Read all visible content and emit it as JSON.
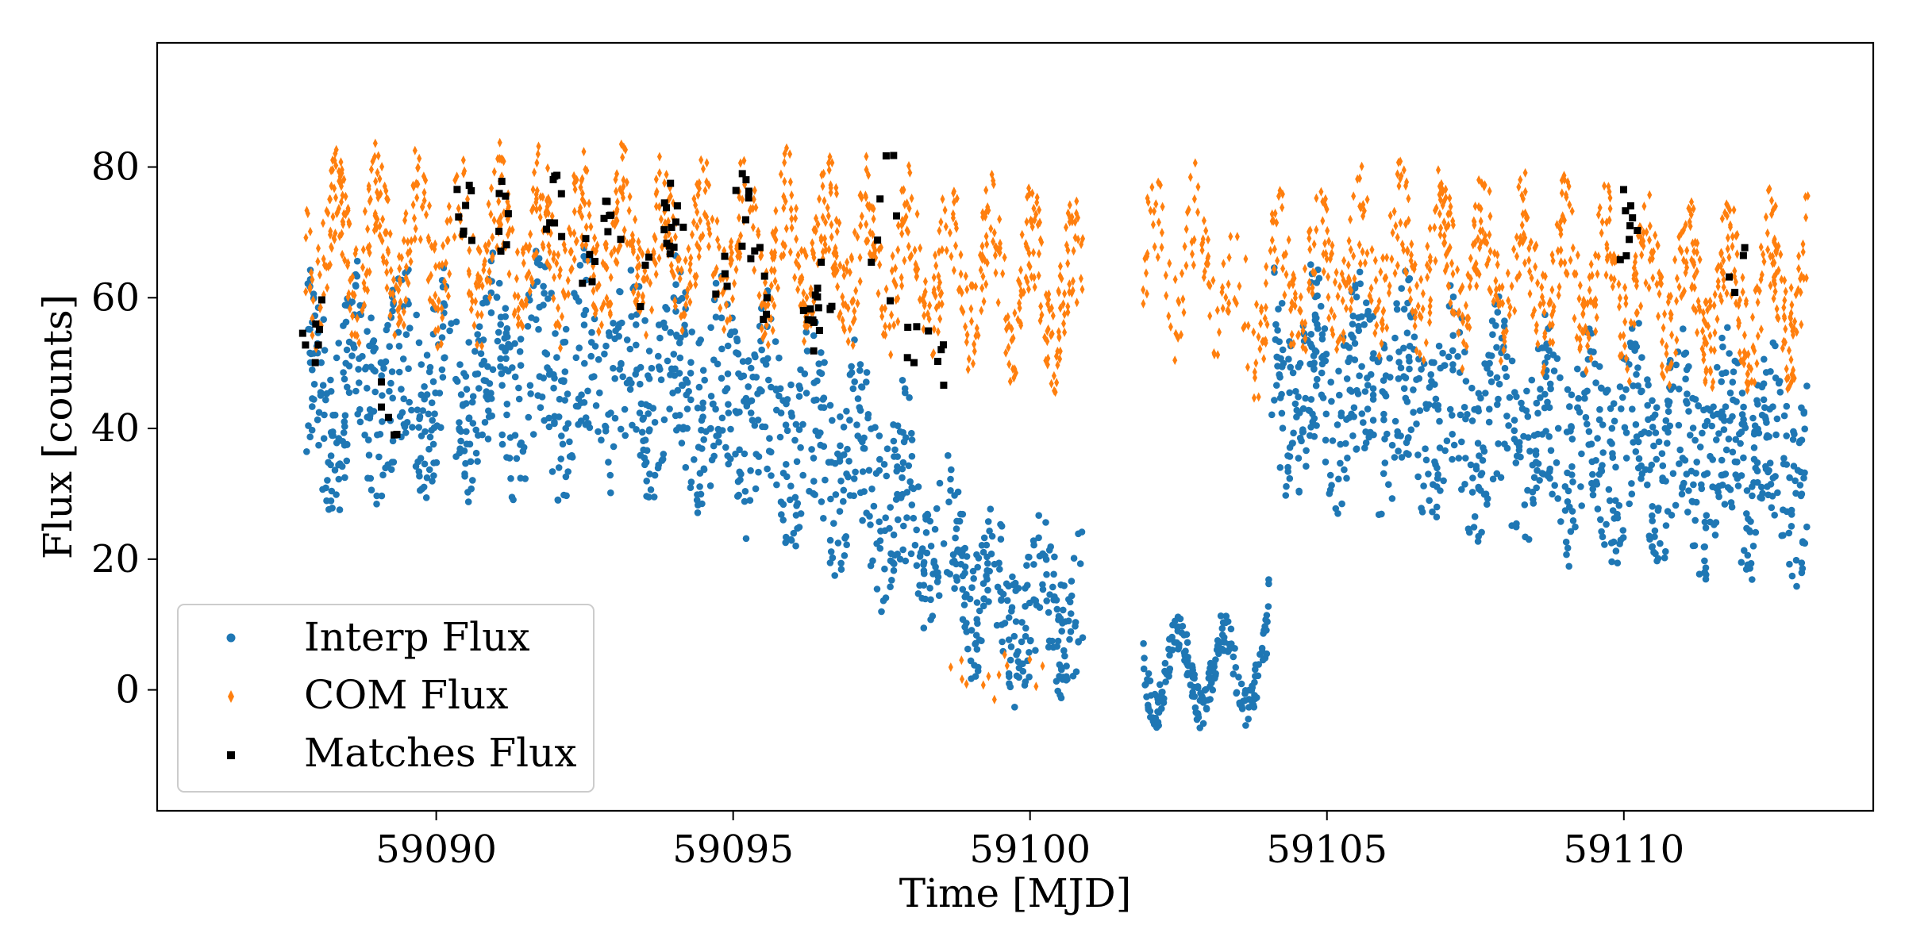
{
  "chart_data": {
    "type": "scatter",
    "title": "",
    "xlabel": "Time [MJD]",
    "ylabel": "Flux [counts]",
    "xlim": [
      59085.3,
      59114.2
    ],
    "ylim": [
      -18.5,
      99.0
    ],
    "xticks": [
      59090,
      59095,
      59100,
      59105,
      59110
    ],
    "xtick_labels": [
      "59090",
      "59095",
      "59100",
      "59105",
      "59110"
    ],
    "yticks": [
      0,
      20,
      40,
      60,
      80
    ],
    "ytick_labels": [
      "0",
      "20",
      "40",
      "60",
      "80"
    ],
    "grid": false,
    "legend_position": "lower-left",
    "x_range_observed": [
      59087.8,
      59113.1
    ],
    "gap": [
      59100.9,
      59101.9
    ],
    "series": [
      {
        "name": "Interp Flux",
        "color": "#1f77b4",
        "marker": "circle",
        "trend": [
          [
            59088,
            45
          ],
          [
            59090,
            47
          ],
          [
            59092,
            48
          ],
          [
            59094,
            47
          ],
          [
            59095.5,
            42
          ],
          [
            59097,
            35
          ],
          [
            59098.5,
            22
          ],
          [
            59099.5,
            12
          ],
          [
            59100.8,
            12
          ],
          [
            59102,
            3
          ],
          [
            59104,
            3
          ],
          [
            59104.1,
            47
          ],
          [
            59106,
            45
          ],
          [
            59108,
            40
          ],
          [
            59110,
            37
          ],
          [
            59112,
            36
          ],
          [
            59113,
            34
          ]
        ]
      },
      {
        "name": "COM Flux",
        "color": "#ff7f0e",
        "marker": "thin_diamond",
        "trend": [
          [
            59088,
            68
          ],
          [
            59090,
            68
          ],
          [
            59092,
            68
          ],
          [
            59094,
            68
          ],
          [
            59096,
            67
          ],
          [
            59098,
            66
          ],
          [
            59100,
            62
          ],
          [
            59100.8,
            60
          ],
          [
            59102,
            65
          ],
          [
            59103.3,
            66
          ],
          [
            59103.5,
            55
          ],
          [
            59104,
            62
          ],
          [
            59106,
            66
          ],
          [
            59108,
            64
          ],
          [
            59110,
            62
          ],
          [
            59112,
            60
          ],
          [
            59113,
            62
          ]
        ]
      },
      {
        "name": "Matches Flux",
        "color": "#000000",
        "marker": "square",
        "highlights": [
          [
            59087.9,
            55.8
          ],
          [
            59089.2,
            45
          ],
          [
            59090.5,
            73.5
          ],
          [
            59091.2,
            73
          ],
          [
            59092,
            74
          ],
          [
            59092.5,
            68
          ],
          [
            59093,
            70
          ],
          [
            59093.5,
            62
          ],
          [
            59094,
            72
          ],
          [
            59094.8,
            63
          ],
          [
            59095.1,
            75
          ],
          [
            59095.3,
            66
          ],
          [
            59095.6,
            62
          ],
          [
            59096.3,
            55
          ],
          [
            59096.5,
            60
          ],
          [
            59097.5,
            65
          ],
          [
            59097.6,
            78
          ],
          [
            59098.1,
            56
          ],
          [
            59098.4,
            51
          ],
          [
            59110.1,
            71.5
          ],
          [
            59111.9,
            65.5
          ]
        ]
      }
    ]
  }
}
